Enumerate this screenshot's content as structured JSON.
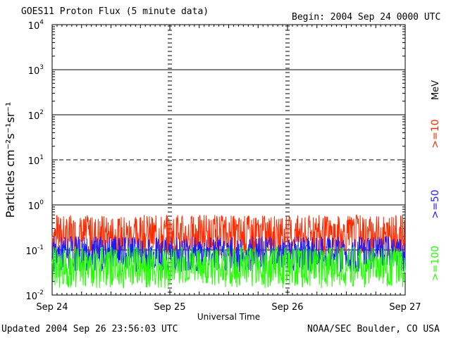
{
  "header": {
    "title": "GOES11 Proton Flux (5 minute data)",
    "begin": "Begin: 2004 Sep 24 0000 UTC"
  },
  "footer": {
    "updated": "Updated 2004 Sep 26 23:56:03 UTC",
    "credit": "NOAA/SEC Boulder, CO USA"
  },
  "chart_data": {
    "type": "line",
    "title": "GOES11 Proton Flux (5 minute data)",
    "xlabel": "Universal Time",
    "ylabel": "Particles cm⁻²s⁻¹sr⁻¹",
    "yscale": "log",
    "ylim": [
      0.01,
      10000
    ],
    "xlim": [
      "2004-09-24",
      "2004-09-27"
    ],
    "x_ticks": [
      "Sep 24",
      "Sep 25",
      "Sep 26",
      "Sep 27"
    ],
    "y_ticks": [
      {
        "base": "10",
        "exp": "-2"
      },
      {
        "base": "10",
        "exp": "-1"
      },
      {
        "base": "10",
        "exp": "0"
      },
      {
        "base": "10",
        "exp": "1"
      },
      {
        "base": "10",
        "exp": "2"
      },
      {
        "base": "10",
        "exp": "3"
      },
      {
        "base": "10",
        "exp": "4"
      }
    ],
    "unit_label": "MeV",
    "grid": true,
    "legend_position": "right-vertical",
    "series": [
      {
        "name": ">=10",
        "color": "#ff2a00",
        "typical": 0.2,
        "peak": 0.6
      },
      {
        "name": ">=50",
        "color": "#1a1aff",
        "typical": 0.09,
        "peak": 0.2
      },
      {
        "name": ">=100",
        "color": "#22ff00",
        "typical": 0.04,
        "peak": 0.12
      }
    ]
  }
}
